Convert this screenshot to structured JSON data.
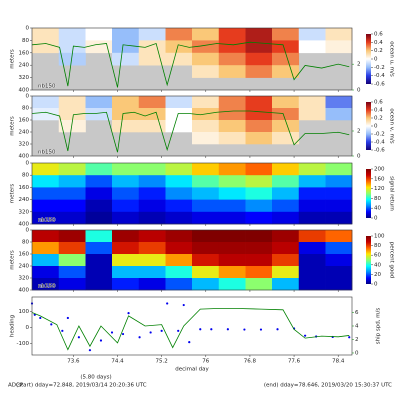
{
  "chart_data": [
    {
      "type": "heatmap",
      "colormap": "diverging",
      "annotation": "nb150",
      "ylabel": "meters",
      "colorbar_label": "ocean u, m/s",
      "xlim": [
        72.85,
        78.65
      ],
      "xticks": [
        73.6,
        74.4,
        75.2,
        76.0,
        76.8,
        77.6,
        78.4
      ],
      "ylim": [
        400,
        0
      ],
      "yticks": [
        0,
        80,
        160,
        240,
        320,
        400
      ],
      "zlim": [
        -0.6,
        0.6
      ],
      "zticks": [
        -0.6,
        -0.4,
        -0.2,
        0.0,
        0.2,
        0.4,
        0.6
      ],
      "y2lim": [
        0,
        4.8
      ],
      "y2ticks": [
        0,
        2
      ],
      "missing_color": "#c8c8c8",
      "x": [
        73.09,
        73.58,
        74.06,
        74.54,
        75.03,
        75.51,
        75.99,
        76.48,
        76.96,
        77.44,
        77.93,
        78.41
      ],
      "y": [
        40,
        120,
        200,
        280,
        360
      ],
      "values": [
        [
          0.1,
          -0.1,
          0,
          -0.2,
          -0.1,
          0.3,
          0.2,
          0.4,
          0.5,
          0.3,
          -0.1,
          0.1
        ],
        [
          0.1,
          -0.1,
          0.05,
          -0.2,
          0.1,
          0.2,
          0.3,
          0.4,
          0.5,
          0.4,
          0,
          0.05
        ],
        [
          null,
          -0.15,
          null,
          -0.1,
          0.1,
          0.1,
          0.2,
          0.3,
          0.4,
          0.3,
          null,
          null
        ],
        [
          null,
          null,
          null,
          null,
          null,
          null,
          0.1,
          0.2,
          0.3,
          0.2,
          null,
          null
        ],
        [
          null,
          null,
          null,
          null,
          null,
          null,
          null,
          null,
          null,
          null,
          null,
          null
        ]
      ],
      "series": [
        {
          "type": "line",
          "axis": "y2",
          "color": "#008000",
          "x": [
            72.85,
            73.1,
            73.35,
            73.5,
            73.6,
            73.8,
            74.0,
            74.2,
            74.4,
            74.5,
            74.7,
            74.9,
            75.1,
            75.3,
            75.5,
            75.7,
            75.9,
            76.2,
            76.5,
            76.8,
            77.1,
            77.4,
            77.6,
            77.8,
            78.1,
            78.4,
            78.6
          ],
          "values": [
            3.5,
            3.6,
            3.3,
            0.3,
            3.4,
            3.3,
            3.5,
            3.6,
            0.2,
            3.5,
            3.4,
            3.3,
            3.6,
            0.4,
            3.5,
            3.3,
            3.4,
            3.6,
            3.5,
            3.7,
            3.6,
            3.5,
            0.8,
            1.9,
            1.7,
            2.0,
            1.8
          ]
        }
      ]
    },
    {
      "type": "heatmap",
      "colormap": "diverging",
      "annotation": "nb150",
      "ylabel": "meters",
      "colorbar_label": "ocean v, m/s",
      "xlim": [
        72.85,
        78.65
      ],
      "xticks": [
        73.6,
        74.4,
        75.2,
        76.0,
        76.8,
        77.6,
        78.4
      ],
      "ylim": [
        400,
        0
      ],
      "yticks": [
        0,
        80,
        160,
        240,
        320,
        400
      ],
      "zlim": [
        -0.6,
        0.6
      ],
      "zticks": [
        -0.6,
        -0.4,
        -0.2,
        0.0,
        0.2,
        0.4,
        0.6
      ],
      "y2lim": [
        0,
        4.8
      ],
      "y2ticks": [
        0,
        2
      ],
      "missing_color": "#c8c8c8",
      "x": [
        73.09,
        73.58,
        74.06,
        74.54,
        75.03,
        75.51,
        75.99,
        76.48,
        76.96,
        77.44,
        77.93,
        78.41
      ],
      "y": [
        40,
        120,
        200,
        280,
        360
      ],
      "values": [
        [
          -0.1,
          0.1,
          -0.2,
          0.2,
          0.3,
          -0.1,
          0.1,
          0.3,
          0.4,
          0.2,
          0.1,
          -0.3
        ],
        [
          -0.05,
          0.1,
          -0.1,
          0.2,
          0.2,
          0,
          0.2,
          0.3,
          0.4,
          0.3,
          0.1,
          -0.2
        ],
        [
          null,
          0.05,
          null,
          0.1,
          0.1,
          0,
          0.1,
          0.2,
          0.3,
          0.2,
          null,
          null
        ],
        [
          null,
          null,
          null,
          null,
          null,
          null,
          0.05,
          0.1,
          0.2,
          0.1,
          null,
          null
        ],
        [
          null,
          null,
          null,
          null,
          null,
          null,
          null,
          null,
          null,
          null,
          null,
          null
        ]
      ],
      "series": [
        {
          "type": "line",
          "axis": "y2",
          "color": "#008000",
          "x": [
            72.85,
            73.1,
            73.35,
            73.5,
            73.6,
            73.8,
            74.0,
            74.2,
            74.4,
            74.5,
            74.7,
            74.9,
            75.1,
            75.3,
            75.5,
            75.7,
            75.9,
            76.2,
            76.5,
            76.8,
            77.1,
            77.4,
            77.6,
            77.8,
            78.1,
            78.4,
            78.6
          ],
          "values": [
            3.4,
            3.5,
            3.2,
            0.4,
            3.3,
            3.4,
            3.4,
            3.5,
            0.3,
            3.4,
            3.5,
            3.2,
            3.5,
            0.5,
            3.4,
            3.4,
            3.3,
            3.5,
            3.6,
            3.6,
            3.5,
            3.4,
            0.9,
            1.8,
            1.8,
            1.9,
            1.7
          ]
        }
      ]
    },
    {
      "type": "heatmap",
      "colormap": "jet",
      "annotation": "nb150",
      "ylabel": "meters",
      "colorbar_label": "signal return",
      "xlim": [
        72.85,
        78.65
      ],
      "xticks": [
        73.6,
        74.4,
        75.2,
        76.0,
        76.8,
        77.6,
        78.4
      ],
      "ylim": [
        400,
        0
      ],
      "yticks": [
        0,
        80,
        160,
        240,
        320,
        400
      ],
      "zlim": [
        0,
        200
      ],
      "zticks": [
        0,
        40,
        80,
        120,
        160,
        200
      ],
      "x": [
        73.09,
        73.58,
        74.06,
        74.54,
        75.03,
        75.51,
        75.99,
        76.48,
        76.96,
        77.44,
        77.93,
        78.41
      ],
      "y": [
        40,
        120,
        200,
        280,
        360
      ],
      "values": [
        [
          120,
          110,
          90,
          100,
          100,
          110,
          130,
          140,
          150,
          130,
          110,
          100
        ],
        [
          70,
          60,
          40,
          60,
          50,
          70,
          90,
          100,
          110,
          90,
          60,
          50
        ],
        [
          40,
          40,
          20,
          40,
          30,
          50,
          60,
          70,
          80,
          60,
          30,
          30
        ],
        [
          25,
          25,
          10,
          30,
          20,
          30,
          40,
          40,
          50,
          40,
          20,
          20
        ],
        [
          15,
          15,
          5,
          15,
          10,
          15,
          20,
          20,
          25,
          20,
          10,
          10
        ]
      ]
    },
    {
      "type": "heatmap",
      "colormap": "jet",
      "annotation": "nb150",
      "ylabel": "meters",
      "colorbar_label": "percent good",
      "xlim": [
        72.85,
        78.65
      ],
      "xticks": [
        73.6,
        74.4,
        75.2,
        76.0,
        76.8,
        77.6,
        78.4
      ],
      "ylim": [
        400,
        0
      ],
      "yticks": [
        0,
        80,
        160,
        240,
        320,
        400
      ],
      "zlim": [
        0,
        100
      ],
      "zticks": [
        0,
        20,
        40,
        60,
        80,
        100
      ],
      "x": [
        73.09,
        73.58,
        74.06,
        74.54,
        75.03,
        75.51,
        75.99,
        76.48,
        76.96,
        77.44,
        77.93,
        78.41
      ],
      "y": [
        40,
        120,
        200,
        280,
        360
      ],
      "values": [
        [
          90,
          95,
          40,
          95,
          90,
          95,
          100,
          100,
          100,
          95,
          80,
          75
        ],
        [
          70,
          80,
          20,
          85,
          80,
          90,
          95,
          95,
          95,
          90,
          10,
          20
        ],
        [
          30,
          50,
          5,
          60,
          60,
          70,
          85,
          90,
          90,
          80,
          5,
          10
        ],
        [
          10,
          20,
          5,
          30,
          30,
          40,
          60,
          70,
          75,
          60,
          5,
          5
        ],
        [
          5,
          10,
          5,
          15,
          10,
          20,
          30,
          40,
          50,
          30,
          5,
          5
        ]
      ]
    },
    {
      "type": "timeseries",
      "ylabel": "heading",
      "y2label": "ship spd, m/s",
      "xlabel": "decimal day",
      "xnote": "(5.80 days)",
      "xlim": [
        72.85,
        78.65
      ],
      "xticks": [
        73.6,
        74.4,
        75.2,
        76.0,
        76.8,
        77.6,
        78.4
      ],
      "ylim": [
        -170,
        190
      ],
      "yticks": [
        -100,
        0,
        100
      ],
      "y2lim": [
        -0.3,
        8.3
      ],
      "y2ticks": [
        0,
        2,
        4,
        6
      ],
      "series": [
        {
          "type": "scatter",
          "color": "#0000ee",
          "x": [
            72.85,
            72.9,
            73.0,
            73.2,
            73.4,
            73.5,
            73.7,
            73.9,
            74.1,
            74.3,
            74.5,
            74.6,
            74.8,
            75.0,
            75.2,
            75.3,
            75.5,
            75.6,
            75.7,
            75.9,
            76.1,
            76.4,
            76.7,
            77.0,
            77.3,
            77.6,
            77.8,
            78.0,
            78.3,
            78.6
          ],
          "values": [
            150,
            80,
            60,
            20,
            -20,
            60,
            -60,
            -140,
            -80,
            -30,
            -40,
            90,
            -60,
            -30,
            -20,
            150,
            -20,
            140,
            -90,
            -10,
            -10,
            -10,
            -12,
            -12,
            -10,
            -5,
            -50,
            -55,
            -58,
            -60
          ]
        },
        {
          "type": "line",
          "axis": "y2",
          "color": "#008000",
          "x": [
            72.85,
            73.0,
            73.3,
            73.5,
            73.7,
            73.9,
            74.1,
            74.4,
            74.6,
            74.9,
            75.2,
            75.4,
            75.6,
            75.9,
            76.2,
            76.6,
            77.0,
            77.4,
            77.6,
            77.8,
            78.1,
            78.4,
            78.6
          ],
          "values": [
            6.0,
            5.5,
            4.2,
            0.5,
            4.0,
            1.0,
            4.0,
            1.5,
            5.5,
            4.0,
            4.2,
            0.8,
            4.0,
            6.5,
            6.6,
            6.6,
            6.5,
            6.4,
            3.5,
            2.2,
            2.5,
            2.4,
            2.6
          ]
        }
      ]
    }
  ],
  "footer": {
    "left": "ADCP",
    "start": "(start) dday=72.848,  2019/03/14 20:20:36 UTC",
    "end": "(end) dday=78.646,  2019/03/20 15:30:37 UTC"
  }
}
